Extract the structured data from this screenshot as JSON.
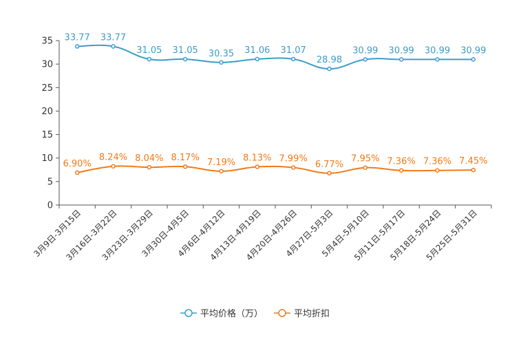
{
  "chart_data": {
    "type": "line",
    "categories": [
      "3月9日-3月15日",
      "3月16日-3月22日",
      "3月23日-3月29日",
      "3月30日-4月5日",
      "4月6日-4月12日",
      "4月13日-4月19日",
      "4月20日-4月26日",
      "4月27日-5月3日",
      "5月4日-5月10日",
      "5月11日-5月17日",
      "5月18日-5月24日",
      "5月25日-5月31日"
    ],
    "ylim": [
      0,
      35
    ],
    "yticks": [
      0,
      5,
      10,
      15,
      20,
      25,
      30,
      35
    ],
    "series": [
      {
        "name": "平均价格（万）",
        "color": "#3b9ccb",
        "values": [
          33.77,
          33.77,
          31.05,
          31.05,
          30.35,
          31.06,
          31.07,
          28.98,
          30.99,
          30.99,
          30.99,
          30.99
        ],
        "labels": [
          "33.77",
          "33.77",
          "31.05",
          "31.05",
          "30.35",
          "31.06",
          "31.07",
          "28.98",
          "30.99",
          "30.99",
          "30.99",
          "30.99"
        ]
      },
      {
        "name": "平均折扣",
        "color": "#f07a1a",
        "values": [
          6.9,
          8.24,
          8.04,
          8.17,
          7.19,
          8.13,
          7.99,
          6.77,
          7.95,
          7.36,
          7.36,
          7.45
        ],
        "labels": [
          "6.90%",
          "8.24%",
          "8.04%",
          "8.17%",
          "7.19%",
          "8.13%",
          "7.99%",
          "6.77%",
          "7.95%",
          "7.36%",
          "7.36%",
          "7.45%"
        ]
      }
    ],
    "legend_position": "bottom-center",
    "grid": false
  }
}
